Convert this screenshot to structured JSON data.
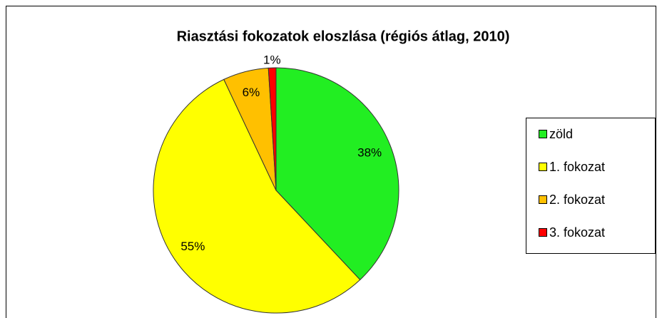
{
  "chart_data": {
    "type": "pie",
    "title": "Riasztási fokozatok eloszlása (régiós átlag, 2010)",
    "categories": [
      "zöld",
      "1. fokozat",
      "2. fokozat",
      "3. fokozat"
    ],
    "values": [
      38,
      55,
      6,
      1
    ],
    "value_labels": [
      "38%",
      "55%",
      "6%",
      "1%"
    ],
    "colors": [
      "#22ee22",
      "#ffff00",
      "#ffc000",
      "#ff0000"
    ],
    "legend": "right"
  }
}
